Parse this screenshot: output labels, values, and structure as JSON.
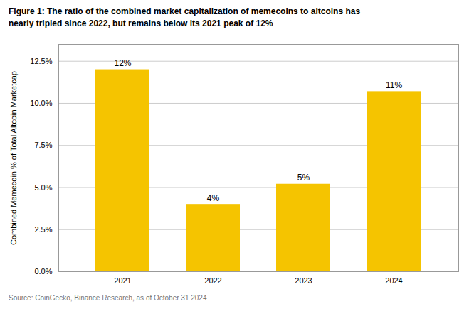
{
  "chart_data": {
    "type": "bar",
    "title": "Figure 1: The ratio of the combined market capitalization of memecoins to altcoins has\nnearly tripled since 2022, but remains below its 2021 peak of 12%",
    "caption": "Source: CoinGecko, Binance Research, as of October 31 2024",
    "ylabel": "Combined Memecoin % of Total Altcoin Marketcap",
    "categories": [
      "2021",
      "2022",
      "2023",
      "2024"
    ],
    "values": [
      12.0,
      4.0,
      5.2,
      10.7
    ],
    "value_labels": [
      "12%",
      "4%",
      "5%",
      "11%"
    ],
    "data_labels": true,
    "color": "#F5C400",
    "ylim": [
      0,
      13.5
    ],
    "yticks": [
      {
        "value": 0.0,
        "label": "0.0%"
      },
      {
        "value": 2.5,
        "label": "2.5%"
      },
      {
        "value": 5.0,
        "label": "5.0%"
      },
      {
        "value": 7.5,
        "label": "7.5%"
      },
      {
        "value": 10.0,
        "label": "10.0%"
      },
      {
        "value": 12.5,
        "label": "12.5%"
      }
    ],
    "grid": true
  }
}
